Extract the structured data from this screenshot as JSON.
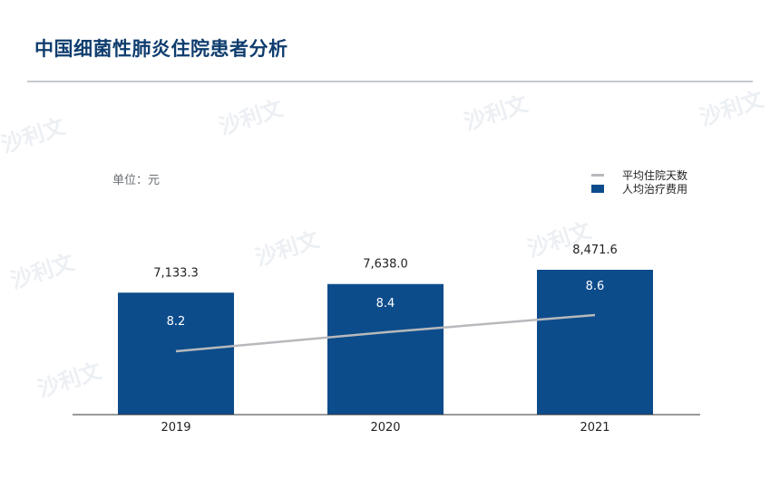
{
  "header": {
    "title": "中国细菌性肺炎住院患者分析"
  },
  "unit_label": "单位：元",
  "watermark": {
    "text": "沙利文"
  },
  "colors": {
    "bar": "#0d4c8b",
    "line": "#b7b9bc",
    "axis": "#333333",
    "title": "#0f3d6e"
  },
  "chart_data": {
    "type": "bar",
    "categories": [
      "2019",
      "2020",
      "2021"
    ],
    "series": [
      {
        "name": "人均治疗费用",
        "type": "bar",
        "values": [
          7133.3,
          7638.0,
          8471.6
        ],
        "labels": [
          "7,133.3",
          "7,638.0",
          "8,471.6"
        ]
      },
      {
        "name": "平均住院天数",
        "type": "line",
        "values": [
          8.2,
          8.4,
          8.6
        ],
        "labels": [
          "8.2",
          "8.4",
          "8.6"
        ]
      }
    ],
    "ylim": [
      0,
      10000
    ],
    "y2lim": [
      0,
      12
    ],
    "xlabel": "",
    "ylabel": "",
    "legend_position": "top-right",
    "grid": false
  }
}
